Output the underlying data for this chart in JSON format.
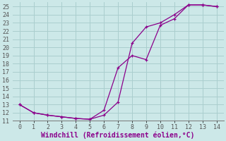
{
  "line1_x": [
    0,
    1,
    2,
    3,
    4,
    5,
    6,
    7,
    8,
    9,
    10,
    11,
    12,
    13,
    14
  ],
  "line1_y": [
    13.0,
    12.0,
    11.7,
    11.5,
    11.3,
    11.2,
    11.7,
    13.3,
    20.5,
    22.5,
    23.0,
    24.0,
    25.2,
    25.2,
    25.0
  ],
  "line2_x": [
    0,
    1,
    2,
    3,
    4,
    5,
    6,
    7,
    8,
    9,
    10,
    11,
    12,
    13,
    14
  ],
  "line2_y": [
    13.0,
    12.0,
    11.7,
    11.5,
    11.3,
    11.2,
    12.3,
    17.5,
    19.0,
    18.5,
    22.7,
    23.5,
    25.2,
    25.2,
    25.0
  ],
  "line_color": "#8B008B",
  "bg_color": "#cce8e8",
  "grid_color": "#aacece",
  "xlabel": "Windchill (Refroidissement éolien,°C)",
  "xlim": [
    -0.5,
    14.5
  ],
  "ylim": [
    11,
    25.5
  ],
  "xticks": [
    0,
    1,
    2,
    3,
    4,
    5,
    6,
    7,
    8,
    9,
    10,
    11,
    12,
    13,
    14
  ],
  "yticks": [
    11,
    12,
    13,
    14,
    15,
    16,
    17,
    18,
    19,
    20,
    21,
    22,
    23,
    24,
    25
  ],
  "xlabel_fontsize": 7,
  "tick_fontsize": 6,
  "marker": "+"
}
